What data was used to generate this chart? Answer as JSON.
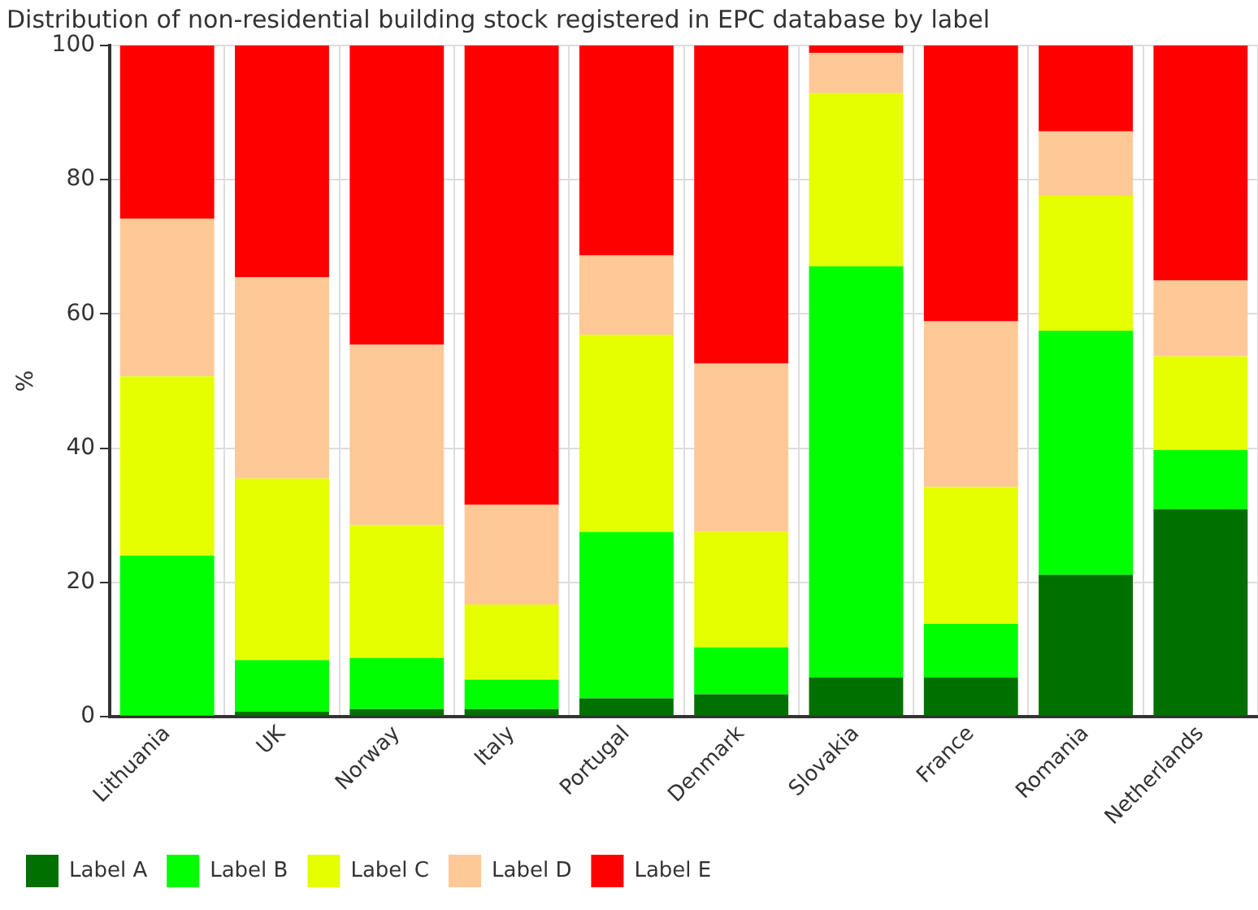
{
  "chart_data": {
    "type": "bar",
    "stacked": true,
    "title": "Distribution of non-residential building stock registered in EPC database by label",
    "ylabel": "%",
    "categories": [
      "Lithuania",
      "UK",
      "Norway",
      "Italy",
      "Portugal",
      "Denmark",
      "Slovakia",
      "France",
      "Romania",
      "Netherlands"
    ],
    "series": [
      {
        "name": "Label A",
        "color": "#007000",
        "values": [
          0,
          0.7,
          1.1,
          1.1,
          2.7,
          3.3,
          5.8,
          5.8,
          21.1,
          30.9
        ]
      },
      {
        "name": "Label B",
        "color": "#00ff00",
        "values": [
          24.0,
          7.7,
          7.6,
          4.4,
          24.8,
          7.0,
          61.3,
          8.0,
          36.4,
          8.8
        ]
      },
      {
        "name": "Label C",
        "color": "#e5ff00",
        "values": [
          26.7,
          27.1,
          19.8,
          11.2,
          29.4,
          17.2,
          25.8,
          20.4,
          20.1,
          14.0
        ]
      },
      {
        "name": "Label D",
        "color": "#ffc896",
        "values": [
          23.5,
          30.0,
          26.9,
          14.9,
          11.8,
          25.1,
          6.0,
          24.7,
          9.6,
          11.3
        ]
      },
      {
        "name": "Label E",
        "color": "#ff0000",
        "values": [
          25.8,
          34.5,
          44.6,
          68.4,
          31.3,
          47.4,
          1.1,
          41.1,
          12.8,
          35.0
        ]
      }
    ],
    "ylim": [
      0,
      100
    ],
    "yticks": [
      0,
      20,
      40,
      60,
      80,
      100
    ],
    "grid": true,
    "legend": "bottom left"
  }
}
